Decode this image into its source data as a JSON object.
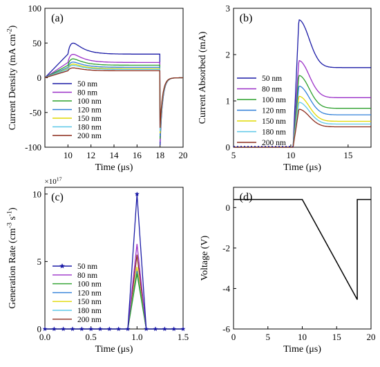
{
  "figure": {
    "panels": [
      "(a)",
      "(b)",
      "(c)",
      "(d)"
    ]
  },
  "chart_data": [
    {
      "panel": "(a)",
      "type": "line",
      "xlabel": "Time (μs)",
      "ylabel": "Current Density (mA cm^-2)",
      "xlim": [
        8,
        20
      ],
      "ylim": [
        -100,
        100
      ],
      "xticks": [
        10,
        12,
        14,
        16,
        18,
        20
      ],
      "yticks": [
        -100,
        -50,
        0,
        50,
        100
      ],
      "legend": "lower-left",
      "series": [
        {
          "name": "50 nm",
          "color": "#1a1aa6",
          "peak": 53,
          "plateau": 34,
          "reverse": -97,
          "end": 0
        },
        {
          "name": "80 nm",
          "color": "#9b30c8",
          "peak": 36,
          "plateau": 22,
          "reverse": -92,
          "end": 0
        },
        {
          "name": "100 nm",
          "color": "#2ca02c",
          "peak": 29,
          "plateau": 18,
          "reverse": -88,
          "end": 0
        },
        {
          "name": "120 nm",
          "color": "#2f7fd8",
          "peak": 24,
          "plateau": 15,
          "reverse": -84,
          "end": 0
        },
        {
          "name": "150 nm",
          "color": "#e0d800",
          "peak": 21,
          "plateau": 13,
          "reverse": -80,
          "end": 0
        },
        {
          "name": "180 nm",
          "color": "#5cc8e8",
          "peak": 19,
          "plateau": 12,
          "reverse": -77,
          "end": 0
        },
        {
          "name": "200 nm",
          "color": "#8b2a1a",
          "peak": 15,
          "plateau": 10,
          "reverse": -72,
          "end": 0
        }
      ]
    },
    {
      "panel": "(b)",
      "type": "line",
      "xlabel": "Time (μs)",
      "ylabel": "Current Absorbed (mA)",
      "xlim": [
        5,
        17
      ],
      "ylim": [
        0,
        3
      ],
      "xticks": [
        5,
        10,
        15
      ],
      "yticks": [
        0,
        1,
        2,
        3
      ],
      "legend": "left",
      "series": [
        {
          "name": "50 nm",
          "color": "#1a1aa6",
          "peak": 2.75,
          "plateau": 1.72
        },
        {
          "name": "80 nm",
          "color": "#9b30c8",
          "peak": 1.87,
          "plateau": 1.07
        },
        {
          "name": "100 nm",
          "color": "#2ca02c",
          "peak": 1.55,
          "plateau": 0.84
        },
        {
          "name": "120 nm",
          "color": "#2f7fd8",
          "peak": 1.32,
          "plateau": 0.7
        },
        {
          "name": "150 nm",
          "color": "#e0d800",
          "peak": 1.1,
          "plateau": 0.56
        },
        {
          "name": "180 nm",
          "color": "#5cc8e8",
          "peak": 0.97,
          "plateau": 0.5
        },
        {
          "name": "200 nm",
          "color": "#8b2a1a",
          "peak": 0.82,
          "plateau": 0.44
        }
      ]
    },
    {
      "panel": "(c)",
      "type": "line",
      "xlabel": "Time (μs)",
      "ylabel": "Generation Rate (cm^-3 s^-1)",
      "y_multiplier": "×10^17",
      "xlim": [
        0,
        1.5
      ],
      "ylim": [
        0,
        10.5
      ],
      "xticks": [
        0.0,
        0.5,
        1.0,
        1.5
      ],
      "xtick_labels": [
        "0.0",
        "0.5",
        "1.0",
        "1.5"
      ],
      "yticks": [
        0,
        5,
        10
      ],
      "legend": "lower-left",
      "x": [
        0.0,
        0.1,
        0.2,
        0.3,
        0.4,
        0.5,
        0.6,
        0.7,
        0.8,
        0.9,
        1.0,
        1.1,
        1.2,
        1.3,
        1.4,
        1.5
      ],
      "series": [
        {
          "name": "50 nm",
          "color": "#1a1aa6",
          "peak": 10.0,
          "markers": true
        },
        {
          "name": "80 nm",
          "color": "#9b30c8",
          "peak": 6.3
        },
        {
          "name": "100 nm",
          "color": "#2ca02c",
          "peak": 4.1
        },
        {
          "name": "120 nm",
          "color": "#2f7fd8",
          "peak": 4.3
        },
        {
          "name": "150 nm",
          "color": "#e0d800",
          "peak": 4.6
        },
        {
          "name": "180 nm",
          "color": "#5cc8e8",
          "peak": 4.5
        },
        {
          "name": "200 nm",
          "color": "#8b2a1a",
          "peak": 5.5
        }
      ]
    },
    {
      "panel": "(d)",
      "type": "line",
      "xlabel": "Time (μs)",
      "ylabel": "Voltage (V)",
      "xlim": [
        0,
        20
      ],
      "ylim": [
        -6,
        1
      ],
      "xticks": [
        0,
        5,
        10,
        15,
        20
      ],
      "yticks": [
        -6,
        -4,
        -2,
        0
      ],
      "series": [
        {
          "color": "#000000",
          "x": [
            0,
            10,
            18,
            18,
            20
          ],
          "y": [
            0.4,
            0.4,
            -4.55,
            0.4,
            0.4
          ]
        }
      ]
    }
  ]
}
